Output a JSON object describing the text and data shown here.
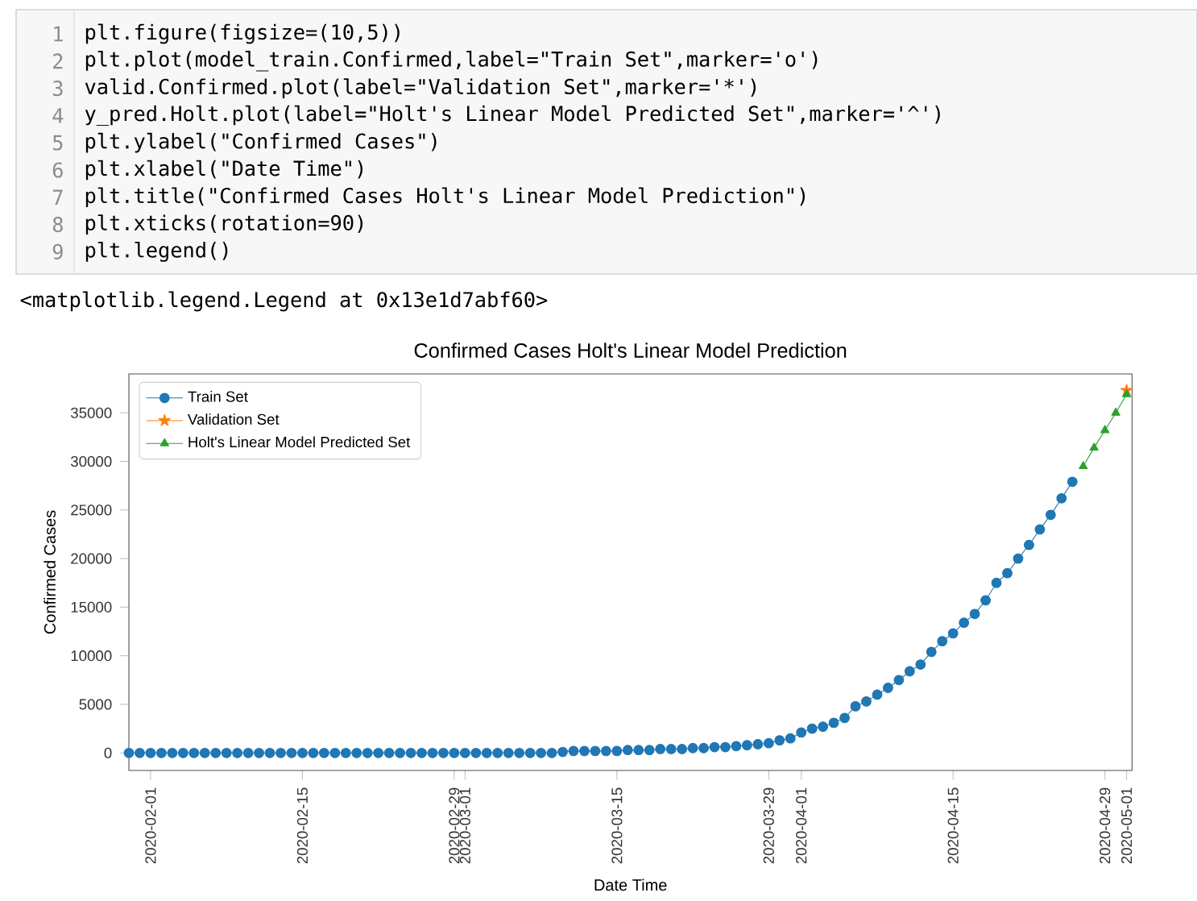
{
  "chart_data": {
    "type": "line",
    "title": "Confirmed Cases Holt's Linear Model Prediction",
    "xlabel": "Date Time",
    "ylabel": "Confirmed Cases",
    "annotations": [
      "1",
      "plt.figure(figsize=(10,5))",
      "2",
      "plt.plot(model_train.Confirmed,label=\"Train Set\",marker='o')",
      "3",
      "valid.Confirmed.plot(label=\"Validation Set\",marker='*')",
      "4",
      "y_pred.Holt.plot(label=\"Holt's Linear Model Predicted Set\",marker='^')",
      "5",
      "plt.ylabel(\"Confirmed Cases\")",
      "6",
      "plt.xlabel(\"Date Time\")",
      "7",
      "plt.title(\"Confirmed Cases Holt's Linear Model Prediction\")",
      "8",
      "plt.xticks(rotation=90)",
      "9",
      "plt.legend()",
      "<matplotlib.legend.Legend at 0x13e1d7abf60>"
    ],
    "xlim": [
      "2020-01-30",
      "2020-05-01T12:00"
    ],
    "xticks": [
      "2020-02-01",
      "2020-02-15",
      "2020-02-29",
      "2020-03-01",
      "2020-03-15",
      "2020-03-29",
      "2020-04-01",
      "2020-04-15",
      "2020-04-29",
      "2020-05-01"
    ],
    "ylim": [
      -1800,
      39000
    ],
    "yticks": [
      0,
      5000,
      10000,
      15000,
      20000,
      25000,
      30000,
      35000
    ],
    "legend": "top left",
    "series": [
      {
        "name": "Train Set",
        "color": "#1f77b4",
        "marker": "circle",
        "x": [
          "2020-01-30",
          "2020-01-31",
          "2020-02-01",
          "2020-02-02",
          "2020-02-03",
          "2020-02-04",
          "2020-02-05",
          "2020-02-06",
          "2020-02-07",
          "2020-02-08",
          "2020-02-09",
          "2020-02-10",
          "2020-02-11",
          "2020-02-12",
          "2020-02-13",
          "2020-02-14",
          "2020-02-15",
          "2020-02-16",
          "2020-02-17",
          "2020-02-18",
          "2020-02-19",
          "2020-02-20",
          "2020-02-21",
          "2020-02-22",
          "2020-02-23",
          "2020-02-24",
          "2020-02-25",
          "2020-02-26",
          "2020-02-27",
          "2020-02-28",
          "2020-02-29",
          "2020-03-01",
          "2020-03-02",
          "2020-03-03",
          "2020-03-04",
          "2020-03-05",
          "2020-03-06",
          "2020-03-07",
          "2020-03-08",
          "2020-03-09",
          "2020-03-10",
          "2020-03-11",
          "2020-03-12",
          "2020-03-13",
          "2020-03-14",
          "2020-03-15",
          "2020-03-16",
          "2020-03-17",
          "2020-03-18",
          "2020-03-19",
          "2020-03-20",
          "2020-03-21",
          "2020-03-22",
          "2020-03-23",
          "2020-03-24",
          "2020-03-25",
          "2020-03-26",
          "2020-03-27",
          "2020-03-28",
          "2020-03-29",
          "2020-03-30",
          "2020-03-31",
          "2020-04-01",
          "2020-04-02",
          "2020-04-03",
          "2020-04-04",
          "2020-04-05",
          "2020-04-06",
          "2020-04-07",
          "2020-04-08",
          "2020-04-09",
          "2020-04-10",
          "2020-04-11",
          "2020-04-12",
          "2020-04-13",
          "2020-04-14",
          "2020-04-15",
          "2020-04-16",
          "2020-04-17",
          "2020-04-18",
          "2020-04-19",
          "2020-04-20",
          "2020-04-21",
          "2020-04-22",
          "2020-04-23",
          "2020-04-24",
          "2020-04-25",
          "2020-04-26"
        ],
        "values": [
          0,
          0,
          0,
          0,
          0,
          0,
          0,
          0,
          0,
          0,
          0,
          0,
          0,
          0,
          0,
          0,
          0,
          0,
          0,
          0,
          0,
          0,
          0,
          0,
          0,
          0,
          0,
          0,
          0,
          0,
          0,
          0,
          0,
          0,
          0,
          0,
          0,
          0,
          0,
          0,
          100,
          200,
          200,
          200,
          200,
          200,
          300,
          300,
          300,
          400,
          400,
          400,
          500,
          500,
          600,
          600,
          700,
          800,
          900,
          1000,
          1300,
          1500,
          2100,
          2500,
          2700,
          3100,
          3600,
          4800,
          5300,
          6000,
          6700,
          7500,
          8400,
          9100,
          10400,
          11500,
          12300,
          13400,
          14300,
          15700,
          17500,
          18500,
          20000,
          21400,
          23000,
          24500,
          26200,
          27900
        ]
      },
      {
        "name": "Validation Set",
        "color": "#ff7f0e",
        "marker": "star",
        "x": [
          "2020-05-01"
        ],
        "values": [
          37300
        ]
      },
      {
        "name": "Holt's Linear Model Predicted Set",
        "color": "#2ca02c",
        "marker": "triangle",
        "x": [
          "2020-04-27",
          "2020-04-28",
          "2020-04-29",
          "2020-04-30",
          "2020-05-01"
        ],
        "values": [
          29500,
          31400,
          33200,
          35000,
          36900
        ]
      }
    ]
  }
}
